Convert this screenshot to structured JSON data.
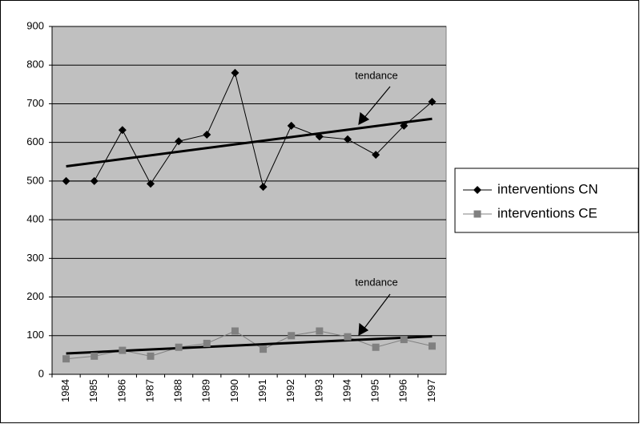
{
  "chart_data": {
    "type": "line",
    "categories": [
      "1984",
      "1985",
      "1986",
      "1987",
      "1988",
      "1989",
      "1990",
      "1991",
      "1992",
      "1993",
      "1994",
      "1995",
      "1996",
      "1997"
    ],
    "series": [
      {
        "name": "interventions CN",
        "color": "#000000",
        "marker": "diamond",
        "values": [
          500,
          500,
          632,
          493,
          603,
          620,
          780,
          485,
          643,
          615,
          608,
          568,
          643,
          705
        ]
      },
      {
        "name": "interventions CE",
        "color": "#808080",
        "marker": "square",
        "values": [
          40,
          47,
          62,
          47,
          70,
          80,
          112,
          65,
          100,
          112,
          97,
          70,
          90,
          73
        ]
      }
    ],
    "trendline": true,
    "annotations": [
      {
        "text": "tendance"
      },
      {
        "text": "tendance"
      }
    ],
    "ylim": [
      0,
      900
    ],
    "yticks": [
      0,
      100,
      200,
      300,
      400,
      500,
      600,
      700,
      800,
      900
    ],
    "grid": true,
    "legend": "right",
    "plot_background": "#c0c0c0"
  }
}
